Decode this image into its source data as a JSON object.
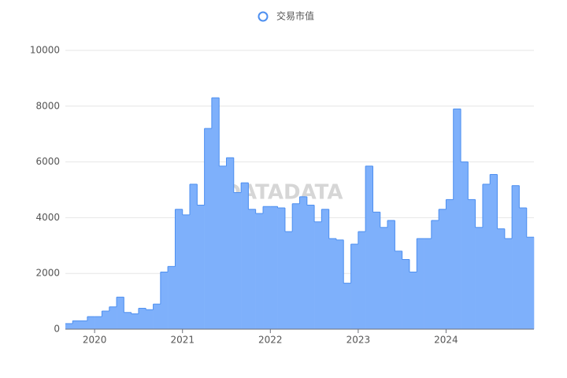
{
  "chart_data": {
    "type": "step-area",
    "legend": "交易市值",
    "watermark": "DATADATA",
    "color": "#7eb0fb",
    "line_color": "#4d8ff0",
    "x": [
      2019.667,
      2019.75,
      2019.833,
      2019.917,
      2020.0,
      2020.083,
      2020.167,
      2020.25,
      2020.333,
      2020.417,
      2020.5,
      2020.583,
      2020.667,
      2020.75,
      2020.833,
      2020.917,
      2021.0,
      2021.083,
      2021.167,
      2021.25,
      2021.333,
      2021.417,
      2021.5,
      2021.583,
      2021.667,
      2021.75,
      2021.833,
      2021.917,
      2022.0,
      2022.083,
      2022.167,
      2022.25,
      2022.333,
      2022.417,
      2022.5,
      2022.583,
      2022.667,
      2022.75,
      2022.833,
      2022.917,
      2023.0,
      2023.083,
      2023.167,
      2023.25,
      2023.333,
      2023.417,
      2023.5,
      2023.583,
      2023.667,
      2023.75,
      2023.833,
      2023.917,
      2024.0,
      2024.083,
      2024.167,
      2024.25,
      2024.333,
      2024.417,
      2024.5,
      2024.583,
      2024.667,
      2024.75,
      2024.833,
      2024.917
    ],
    "values": [
      200,
      300,
      300,
      450,
      450,
      650,
      800,
      1150,
      600,
      550,
      750,
      700,
      900,
      2050,
      2250,
      4300,
      4100,
      5200,
      4450,
      7200,
      8300,
      5850,
      6150,
      4900,
      5250,
      4300,
      4150,
      4400,
      4400,
      4350,
      3500,
      4500,
      4750,
      4450,
      3850,
      4300,
      3250,
      3200,
      1650,
      3050,
      3500,
      5850,
      4200,
      3650,
      3900,
      2800,
      2500,
      2050,
      3250,
      3250,
      3900,
      4300,
      4650,
      7900,
      6000,
      4650,
      3650,
      5200,
      5550,
      3600,
      3250,
      5150,
      4350,
      3300
    ],
    "xlim": [
      2019.667,
      2025.0
    ],
    "xticks": [
      2020,
      2021,
      2022,
      2023,
      2024
    ],
    "ylim": [
      0,
      10000
    ],
    "yticks": [
      0,
      2000,
      4000,
      6000,
      8000,
      10000
    ],
    "grid": true
  }
}
